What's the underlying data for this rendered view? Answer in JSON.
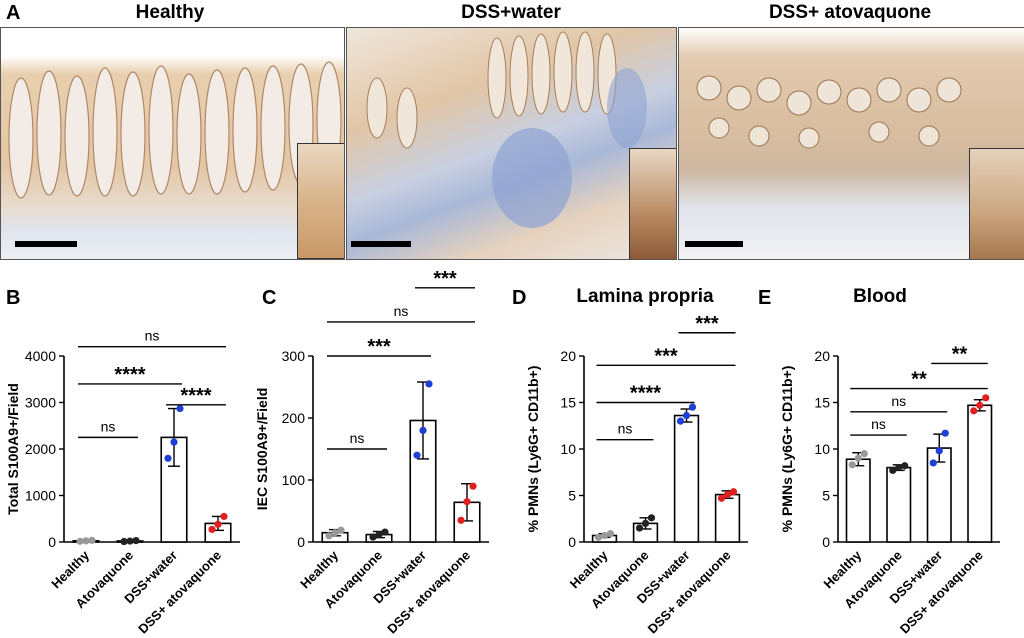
{
  "panel_a": {
    "label": "A",
    "images": [
      {
        "title": "Healthy"
      },
      {
        "title": "DSS+water"
      },
      {
        "title": "DSS+ atovaquone"
      }
    ]
  },
  "colors": {
    "healthy": "#999999",
    "atovaquone": "#222222",
    "dss_water": "#1f3fd6",
    "dss_atovaquone": "#e02020"
  },
  "chart_data": [
    {
      "panel": "B",
      "type": "bar",
      "title": "",
      "ylabel": "Total S100A9+/Field",
      "xlabel": "",
      "categories": [
        "Healthy",
        "Atovaquone",
        "DSS+water",
        "DSS+ atovaquone"
      ],
      "values": [
        25,
        20,
        2250,
        400
      ],
      "errors": [
        10,
        8,
        620,
        150
      ],
      "points": [
        [
          15,
          25,
          35
        ],
        [
          10,
          20,
          30
        ],
        [
          1800,
          2150,
          2870
        ],
        [
          270,
          380,
          550
        ]
      ],
      "ylim": [
        0,
        4000
      ],
      "yticks": [
        0,
        1000,
        2000,
        3000,
        4000
      ],
      "comparisons": [
        {
          "from": 0,
          "to": 1,
          "label": "ns",
          "level": 2250
        },
        {
          "from": 2,
          "to": 3,
          "label": "****",
          "level": 2950
        },
        {
          "from": 0,
          "to": 2,
          "label": "****",
          "level": 3400
        },
        {
          "from": 0,
          "to": 3,
          "label": "ns",
          "level": 4200
        }
      ]
    },
    {
      "panel": "C",
      "type": "bar",
      "title": "",
      "ylabel": "IEC S100A9+/Field",
      "xlabel": "",
      "categories": [
        "Healthy",
        "Atovaquone",
        "DSS+water",
        "DSS+ atovaquone"
      ],
      "values": [
        15,
        12,
        196,
        64
      ],
      "errors": [
        5,
        5,
        62,
        30
      ],
      "points": [
        [
          10,
          15,
          19
        ],
        [
          8,
          12,
          16
        ],
        [
          140,
          180,
          255
        ],
        [
          35,
          65,
          90
        ]
      ],
      "ylim": [
        0,
        300
      ],
      "yticks": [
        0,
        100,
        200,
        300
      ],
      "comparisons": [
        {
          "from": 0,
          "to": 1,
          "label": "ns",
          "level": 150
        },
        {
          "from": 0,
          "to": 2,
          "label": "***",
          "level": 300
        },
        {
          "from": 0,
          "to": 3,
          "label": "ns",
          "level": 355
        },
        {
          "from": 2,
          "to": 3,
          "label": "***",
          "level": 410
        }
      ]
    },
    {
      "panel": "D",
      "type": "bar",
      "title": "Lamina propria",
      "ylabel": "% PMNs (Ly6G+ CD11b+)",
      "xlabel": "",
      "categories": [
        "Healthy",
        "Atovaquone",
        "DSS+water",
        "DSS+ atovaquone"
      ],
      "values": [
        0.7,
        2.0,
        13.6,
        5.1
      ],
      "errors": [
        0.2,
        0.6,
        0.7,
        0.4
      ],
      "points": [
        [
          0.5,
          0.7,
          0.9
        ],
        [
          1.5,
          2.0,
          2.6
        ],
        [
          13.0,
          13.6,
          14.5
        ],
        [
          4.7,
          5.1,
          5.4
        ]
      ],
      "ylim": [
        0,
        20
      ],
      "yticks": [
        0,
        5,
        10,
        15,
        20
      ],
      "comparisons": [
        {
          "from": 0,
          "to": 1,
          "label": "ns",
          "level": 11
        },
        {
          "from": 0,
          "to": 2,
          "label": "****",
          "level": 15
        },
        {
          "from": 0,
          "to": 3,
          "label": "***",
          "level": 19
        },
        {
          "from": 2,
          "to": 3,
          "label": "***",
          "level": 22.5
        }
      ]
    },
    {
      "panel": "E",
      "type": "bar",
      "title": "Blood",
      "ylabel": "% PMNs (Ly6G+ CD11b+)",
      "xlabel": "",
      "categories": [
        "Healthy",
        "Atovaquone",
        "DSS+water",
        "DSS+ atovaquone"
      ],
      "values": [
        8.9,
        8.0,
        10.1,
        14.7
      ],
      "errors": [
        0.7,
        0.3,
        1.5,
        0.6
      ],
      "points": [
        [
          8.3,
          9.0,
          9.5
        ],
        [
          7.7,
          8.0,
          8.2
        ],
        [
          8.5,
          9.8,
          11.7
        ],
        [
          14.1,
          14.7,
          15.5
        ]
      ],
      "ylim": [
        0,
        20
      ],
      "yticks": [
        0,
        5,
        10,
        15,
        20
      ],
      "comparisons": [
        {
          "from": 0,
          "to": 1,
          "label": "ns",
          "level": 11.5
        },
        {
          "from": 0,
          "to": 2,
          "label": "ns",
          "level": 14
        },
        {
          "from": 0,
          "to": 3,
          "label": "**",
          "level": 16.5
        },
        {
          "from": 2,
          "to": 3,
          "label": "**",
          "level": 19.2
        }
      ]
    }
  ]
}
